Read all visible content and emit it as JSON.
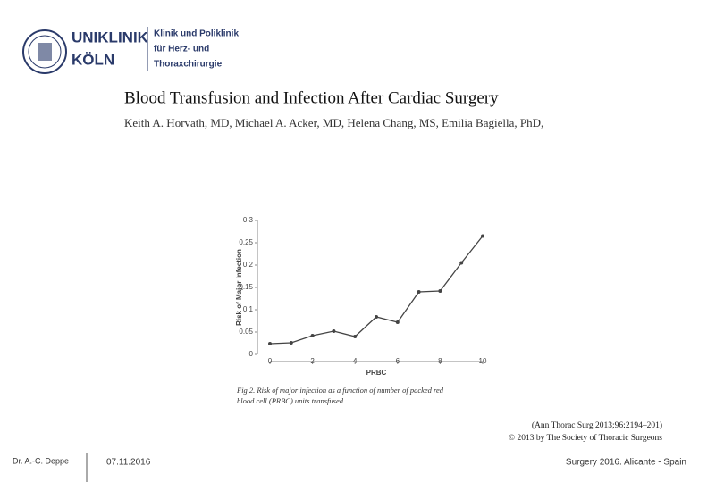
{
  "header": {
    "brand": [
      "UNIKLINIK",
      "KÖLN"
    ],
    "department": [
      "Klinik und Poliklinik",
      "für Herz- und",
      "Thoraxchirurgie"
    ]
  },
  "paper": {
    "title": "Blood Transfusion and Infection After Cardiac Surgery",
    "authors": "Keith A. Horvath, MD, Michael A. Acker, MD, Helena Chang, MS, Emilia Bagiella, PhD,",
    "caption": [
      "Fig 2. Risk of major infection as a function of number of packed red",
      "blood cell (PRBC) units transfused."
    ],
    "citation": [
      "(Ann Thorac Surg 2013;96:2194–201)",
      "© 2013 by The Society of Thoracic Surgeons"
    ]
  },
  "chart_data": {
    "type": "line",
    "x_label": "PRBC",
    "y_label": "Risk of Major Infection",
    "x": [
      0,
      1,
      2,
      3,
      4,
      5,
      6,
      7,
      8,
      9,
      10
    ],
    "series": [
      {
        "name": "Risk of Major Infection",
        "color": "#444444",
        "values": [
          0.024,
          0.026,
          0.042,
          0.052,
          0.04,
          0.084,
          0.072,
          0.14,
          0.142,
          0.205,
          0.265
        ]
      }
    ],
    "xlim": [
      0,
      10
    ],
    "xticks": [
      0,
      2,
      4,
      6,
      8,
      10
    ],
    "ylim": [
      0,
      0.3
    ],
    "yticks": [
      0,
      0.05,
      0.1,
      0.15,
      0.2,
      0.25,
      0.3
    ]
  },
  "footer": {
    "author": "Dr. A.-C. Deppe",
    "date": "07.11.2016",
    "event": "Surgery 2016. Alicante - Spain"
  }
}
